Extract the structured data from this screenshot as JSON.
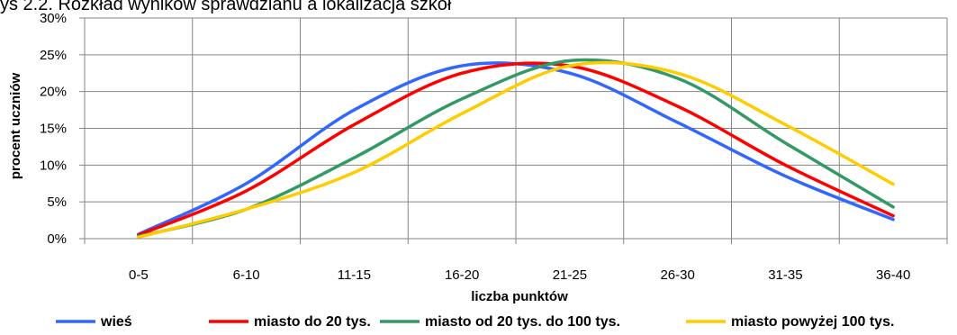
{
  "chart_data": {
    "type": "line",
    "title": "ys 2.2. Rozkład wyników sprawdzianu a lokalizacja szkoł",
    "xlabel": "liczba punktów",
    "ylabel": "procent  uczniów",
    "categories": [
      "0-5",
      "6-10",
      "11-15",
      "16-20",
      "21-25",
      "26-30",
      "31-35",
      "36-40"
    ],
    "ylim": [
      0,
      30
    ],
    "yticks": [
      "0%",
      "5%",
      "10%",
      "15%",
      "20%",
      "25%",
      "30%"
    ],
    "ytick_values": [
      0,
      5,
      10,
      15,
      20,
      25,
      30
    ],
    "grid": true,
    "legend_position": "bottom",
    "series": [
      {
        "name": "wieś",
        "color": "#3366FF",
        "values": [
          0.6,
          7.5,
          17.5,
          23.5,
          22.5,
          15.8,
          8.5,
          2.6
        ]
      },
      {
        "name": "miasto do 20 tys.",
        "color": "#FF0000",
        "values": [
          0.5,
          6.5,
          15.5,
          22.5,
          23.5,
          18.0,
          10.0,
          3.1
        ]
      },
      {
        "name": "miasto od 20 tys. do 100 tys.",
        "color": "#339966",
        "values": [
          0.3,
          4.0,
          11.0,
          19.0,
          24.2,
          21.8,
          13.0,
          4.3
        ]
      },
      {
        "name": "miasto powyżej 100 tys.",
        "color": "#FFCC00",
        "values": [
          0.2,
          4.0,
          9.0,
          17.0,
          23.5,
          22.5,
          15.5,
          7.4
        ]
      }
    ]
  }
}
